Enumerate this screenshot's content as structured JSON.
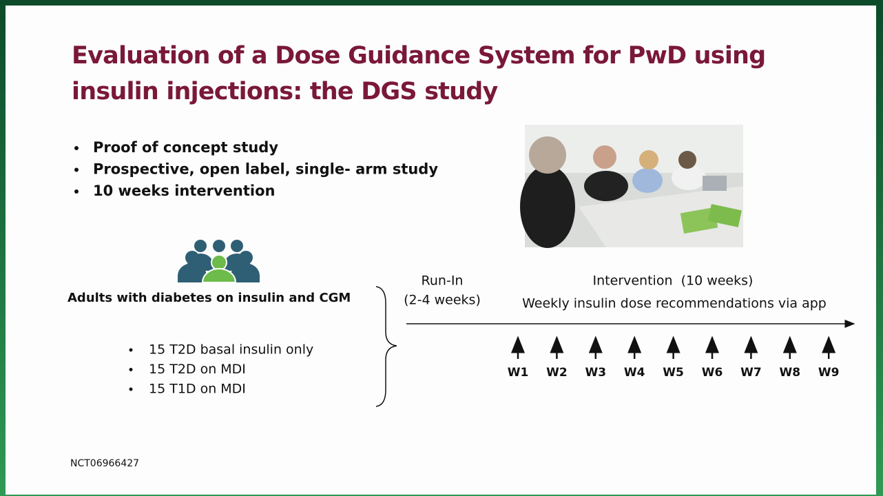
{
  "slide": {
    "title": [
      "Evaluation of a Dose Guidance System for PwD using",
      "insulin injections: the DGS study"
    ],
    "bullets": [
      "Proof of concept study",
      "Prospective, open label, single- arm study",
      "10 weeks intervention"
    ],
    "population": "Adults with diabetes on insulin and CGM",
    "cohorts": [
      "15 T2D basal insulin only",
      "15 T2D on MDI",
      "15 T1D on MDI"
    ],
    "timeline": {
      "run_in": [
        "Run-In",
        "(2-4 weeks)"
      ],
      "intervention": "Intervention  (10 weeks)",
      "description": "Weekly insulin dose recommendations via app",
      "weeks": [
        "W1",
        "W2",
        "W3",
        "W4",
        "W5",
        "W6",
        "W7",
        "W8",
        "W9"
      ]
    },
    "footer": "NCT06966427"
  }
}
